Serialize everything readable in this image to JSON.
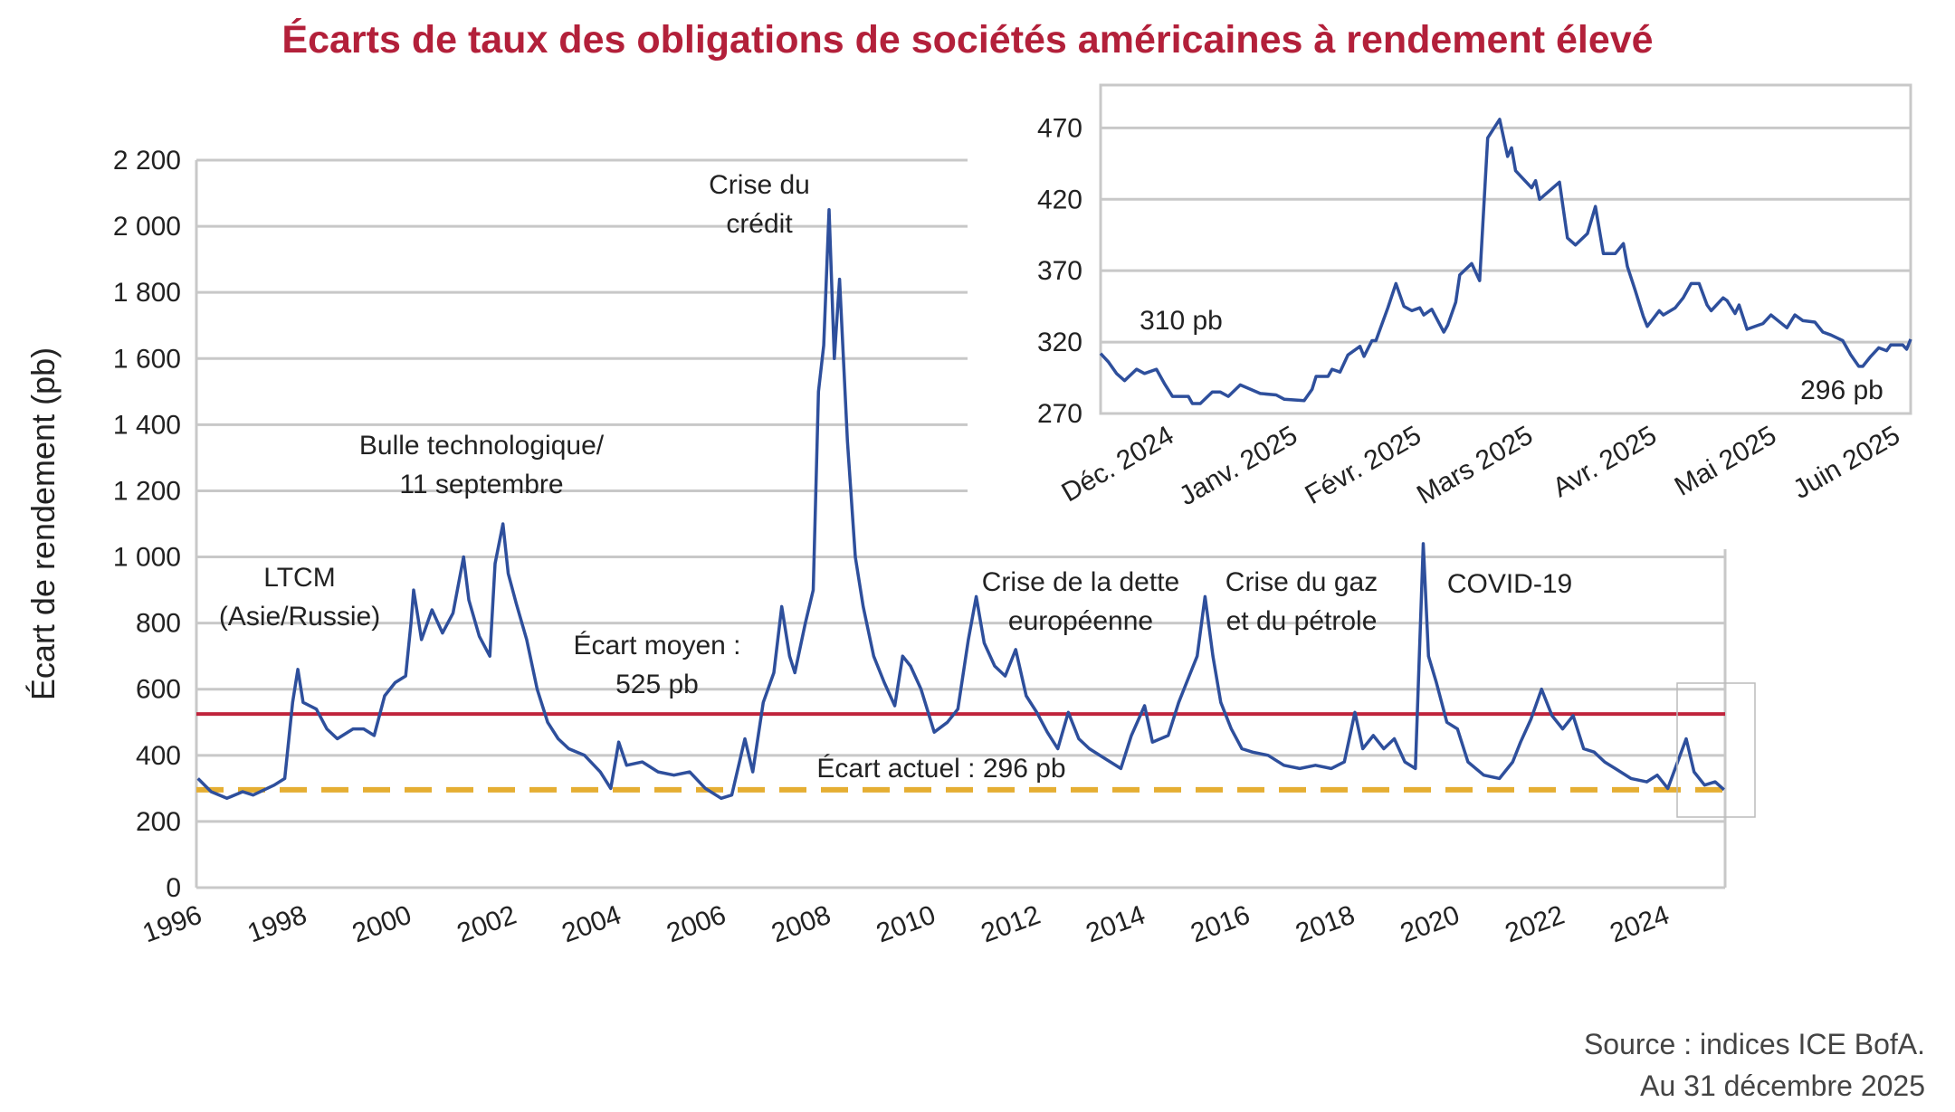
{
  "title": "Écarts de taux des obligations de sociétés américaines à rendement élevé",
  "source": [
    "Source : indices ICE BofA.",
    "Au 31 décembre 2025"
  ],
  "colors": {
    "series": "#2e4f9c",
    "average": "#c0243c",
    "current": "#e5ae32",
    "grid": "#c8c8c8",
    "title": "#b3203a"
  },
  "chart_data": [
    {
      "type": "line",
      "ylabel": "Écart de rendement (pb)",
      "ylim": [
        0,
        2200
      ],
      "yticks": [
        0,
        200,
        400,
        600,
        800,
        1000,
        1200,
        1400,
        1600,
        1800,
        2000,
        2200
      ],
      "ytick_labels": [
        "0",
        "200",
        "400",
        "600",
        "800",
        "1 000",
        "1 200",
        "1 400",
        "1 600",
        "1 800",
        "2 000",
        "2 200"
      ],
      "xlim": [
        1996.92,
        2025.99
      ],
      "xtick_labels": [
        "1996",
        "1998",
        "2000",
        "2002",
        "2004",
        "2006",
        "2008",
        "2010",
        "2012",
        "2014",
        "2016",
        "2018",
        "2020",
        "2022",
        "2024"
      ],
      "grid": true,
      "reference_lines": [
        {
          "value": 525,
          "style": "solid",
          "color": "#c0243c",
          "label": [
            "Écart moyen :",
            "525 pb"
          ]
        },
        {
          "value": 296,
          "style": "dashed",
          "color": "#e5ae32",
          "label": [
            "Écart actuel : 296 pb"
          ]
        }
      ],
      "annotations": [
        {
          "text": [
            "LTCM",
            "(Asie/Russie)"
          ]
        },
        {
          "text": [
            "Bulle technologique/",
            "11 septembre"
          ]
        },
        {
          "text": [
            "Crise du",
            "crédit"
          ]
        },
        {
          "text": [
            "Crise de la dette",
            "européenne"
          ]
        },
        {
          "text": [
            "Crise du gaz",
            "et du pétrole"
          ]
        },
        {
          "text": [
            "COVID-19"
          ]
        }
      ],
      "series": [
        {
          "x": [
            1996.95,
            1997.2,
            1997.5,
            1997.8,
            1998.0,
            1998.4,
            1998.6,
            1998.75,
            1998.85,
            1998.95,
            1999.2,
            1999.4,
            1999.6,
            1999.9,
            2000.1,
            2000.3,
            2000.5,
            2000.7,
            2000.9,
            2001.0,
            2001.05,
            2001.2,
            2001.4,
            2001.6,
            2001.8,
            2002.0,
            2002.1,
            2002.3,
            2002.5,
            2002.6,
            2002.75,
            2002.85,
            2003.0,
            2003.2,
            2003.4,
            2003.6,
            2003.8,
            2004.0,
            2004.3,
            2004.6,
            2004.8,
            2004.95,
            2005.1,
            2005.4,
            2005.7,
            2006.0,
            2006.3,
            2006.6,
            2006.9,
            2007.1,
            2007.35,
            2007.5,
            2007.7,
            2007.9,
            2008.05,
            2008.2,
            2008.3,
            2008.5,
            2008.65,
            2008.75,
            2008.85,
            2008.95,
            2009.05,
            2009.15,
            2009.3,
            2009.45,
            2009.6,
            2009.8,
            2010.0,
            2010.2,
            2010.35,
            2010.5,
            2010.7,
            2010.95,
            2011.2,
            2011.4,
            2011.6,
            2011.75,
            2011.9,
            2012.1,
            2012.3,
            2012.5,
            2012.7,
            2012.9,
            2013.1,
            2013.3,
            2013.5,
            2013.7,
            2013.9,
            2014.2,
            2014.5,
            2014.7,
            2014.95,
            2015.1,
            2015.4,
            2015.6,
            2015.8,
            2015.95,
            2016.1,
            2016.25,
            2016.4,
            2016.6,
            2016.8,
            2017.0,
            2017.3,
            2017.6,
            2017.9,
            2018.2,
            2018.5,
            2018.75,
            2018.95,
            2019.1,
            2019.3,
            2019.5,
            2019.7,
            2019.9,
            2020.1,
            2020.25,
            2020.35,
            2020.5,
            2020.7,
            2020.9,
            2021.1,
            2021.4,
            2021.7,
            2021.95,
            2022.1,
            2022.3,
            2022.5,
            2022.7,
            2022.9,
            2023.1,
            2023.3,
            2023.5,
            2023.7,
            2023.9,
            2024.2,
            2024.5,
            2024.7,
            2024.9,
            2025.25,
            2025.4,
            2025.6,
            2025.8,
            2025.97
          ],
          "y": [
            330,
            290,
            270,
            290,
            280,
            310,
            330,
            560,
            660,
            560,
            540,
            480,
            450,
            480,
            480,
            460,
            580,
            620,
            640,
            800,
            900,
            750,
            840,
            770,
            830,
            1000,
            870,
            760,
            700,
            980,
            1100,
            950,
            860,
            750,
            600,
            500,
            450,
            420,
            400,
            350,
            300,
            440,
            370,
            380,
            350,
            340,
            350,
            300,
            270,
            280,
            450,
            350,
            560,
            650,
            850,
            700,
            650,
            800,
            900,
            1500,
            1640,
            2050,
            1600,
            1840,
            1350,
            1000,
            850,
            700,
            620,
            550,
            700,
            670,
            600,
            470,
            500,
            540,
            750,
            880,
            740,
            670,
            640,
            720,
            580,
            530,
            470,
            420,
            530,
            450,
            420,
            390,
            360,
            460,
            550,
            440,
            460,
            560,
            640,
            700,
            880,
            700,
            560,
            480,
            420,
            410,
            400,
            370,
            360,
            370,
            360,
            380,
            530,
            420,
            460,
            420,
            450,
            380,
            360,
            1040,
            700,
            620,
            500,
            480,
            380,
            340,
            330,
            380,
            440,
            510,
            600,
            520,
            480,
            520,
            420,
            410,
            380,
            360,
            330,
            320,
            340,
            300,
            450,
            350,
            310,
            320,
            296
          ]
        }
      ]
    },
    {
      "type": "line",
      "ylim": [
        270,
        500
      ],
      "yticks": [
        270,
        320,
        370,
        420,
        470
      ],
      "ytick_labels": [
        "270",
        "320",
        "370",
        "420",
        "470"
      ],
      "xlim": [
        "2024-11-14",
        "2025-06-05"
      ],
      "xticks": [
        {
          "label": "Déc. 2024",
          "date": "2024-12-01"
        },
        {
          "label": "Janv. 2025",
          "date": "2025-01-01"
        },
        {
          "label": "Févr. 2025",
          "date": "2025-02-01"
        },
        {
          "label": "Mars 2025",
          "date": "2025-03-01"
        },
        {
          "label": "Avr. 2025",
          "date": "2025-04-01"
        },
        {
          "label": "Mai 2025",
          "date": "2025-05-01"
        },
        {
          "label": "Juin 2025",
          "date": "2025-06-01"
        }
      ],
      "grid": true,
      "annotations": [
        {
          "text": "310 pb"
        },
        {
          "text": "296 pb"
        }
      ],
      "series": [
        {
          "x": [
            "2024-11-14",
            "2024-11-16",
            "2024-11-18",
            "2024-11-20",
            "2024-11-23",
            "2024-11-25",
            "2024-11-28",
            "2024-11-30",
            "2024-12-02",
            "2024-12-06",
            "2024-12-07",
            "2024-12-09",
            "2024-12-12",
            "2024-12-14",
            "2024-12-16",
            "2024-12-19",
            "2024-12-24",
            "2024-12-28",
            "2024-12-30",
            "2025-01-04",
            "2025-01-06",
            "2025-01-07",
            "2025-01-10",
            "2025-01-11",
            "2025-01-13",
            "2025-01-15",
            "2025-01-18",
            "2025-01-19",
            "2025-01-21",
            "2025-01-22",
            "2025-01-25",
            "2025-01-27",
            "2025-01-29",
            "2025-01-31",
            "2025-02-02",
            "2025-02-03",
            "2025-02-05",
            "2025-02-08",
            "2025-02-09",
            "2025-02-11",
            "2025-02-12",
            "2025-02-15",
            "2025-02-17",
            "2025-02-19",
            "2025-02-22",
            "2025-02-24",
            "2025-02-25",
            "2025-02-26",
            "2025-03-02",
            "2025-03-03",
            "2025-03-04",
            "2025-03-09",
            "2025-03-11",
            "2025-03-13",
            "2025-03-16",
            "2025-03-18",
            "2025-03-20",
            "2025-03-23",
            "2025-03-25",
            "2025-03-26",
            "2025-03-28",
            "2025-03-30",
            "2025-03-31",
            "2025-04-03",
            "2025-04-04",
            "2025-04-07",
            "2025-04-09",
            "2025-04-11",
            "2025-04-13",
            "2025-04-15",
            "2025-04-16",
            "2025-04-19",
            "2025-04-20",
            "2025-04-22",
            "2025-04-23",
            "2025-04-25",
            "2025-04-28",
            "2025-04-29",
            "2025-05-01",
            "2025-05-05",
            "2025-05-07",
            "2025-05-09",
            "2025-05-12",
            "2025-05-14",
            "2025-05-16",
            "2025-05-19",
            "2025-05-21",
            "2025-05-23",
            "2025-05-24",
            "2025-05-26",
            "2025-05-28",
            "2025-05-30",
            "2025-05-31",
            "2025-06-03",
            "2025-06-04",
            "2025-06-05"
          ],
          "y": [
            312,
            306,
            298,
            293,
            301,
            298,
            301,
            291,
            282,
            282,
            277,
            277,
            285,
            285,
            282,
            290,
            284,
            283,
            280,
            279,
            287,
            296,
            296,
            301,
            299,
            311,
            317,
            310,
            321,
            321,
            344,
            361,
            345,
            342,
            344,
            339,
            343,
            327,
            332,
            348,
            367,
            375,
            363,
            463,
            476,
            450,
            456,
            440,
            428,
            433,
            420,
            432,
            393,
            388,
            396,
            415,
            382,
            382,
            389,
            373,
            356,
            338,
            331,
            342,
            339,
            344,
            351,
            361,
            361,
            346,
            342,
            351,
            349,
            340,
            346,
            329,
            332,
            333,
            339,
            330,
            339,
            335,
            334,
            327,
            325,
            321,
            311,
            303,
            303,
            310,
            316,
            314,
            318,
            318,
            315,
            322
          ]
        }
      ]
    }
  ]
}
